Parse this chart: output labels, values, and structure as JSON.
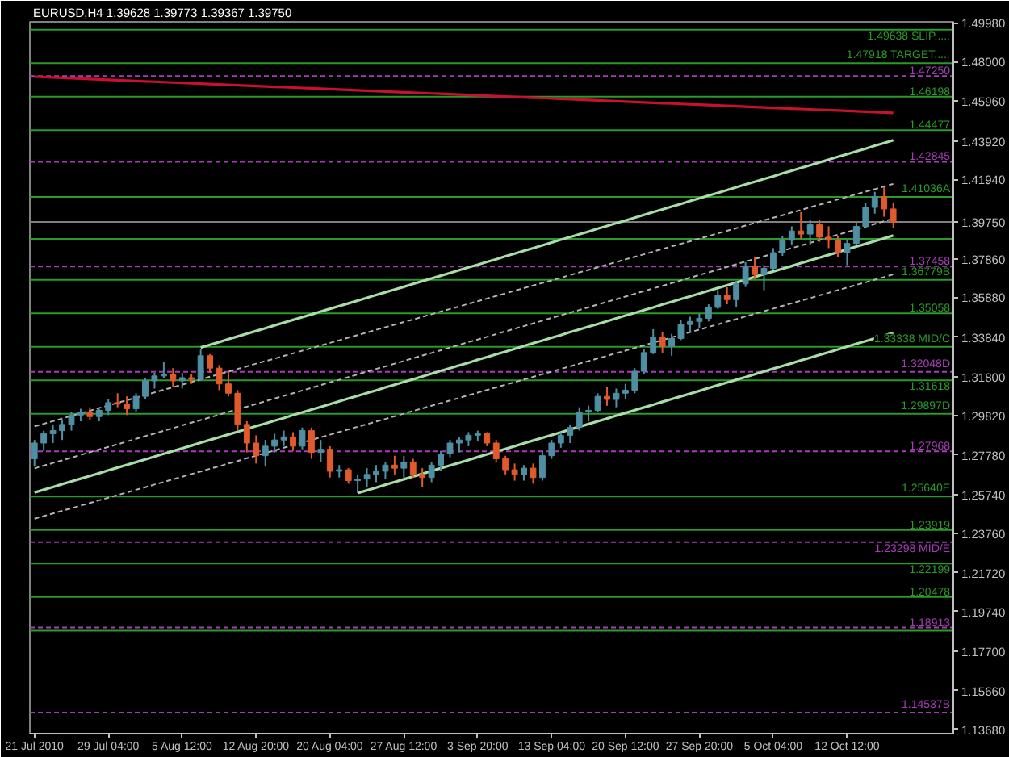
{
  "chart_data": {
    "type": "candlestick",
    "title": "EURUSD,H4  1.39628 1.39773 1.39367 1.39750",
    "categories": [
      "21 Jul 2010",
      null,
      null,
      null,
      null,
      null,
      null,
      null,
      "29 Jul 04:00",
      null,
      null,
      null,
      null,
      null,
      null,
      null,
      "5 Aug 12:00",
      null,
      null,
      null,
      null,
      null,
      null,
      null,
      "12 Aug 20:00",
      null,
      null,
      null,
      null,
      null,
      null,
      null,
      "20 Aug 04:00",
      null,
      null,
      null,
      null,
      null,
      null,
      null,
      "27 Aug 12:00",
      null,
      null,
      null,
      null,
      null,
      null,
      null,
      "3 Sep 20:00",
      null,
      null,
      null,
      null,
      null,
      null,
      null,
      "13 Sep 04:00",
      null,
      null,
      null,
      null,
      null,
      null,
      null,
      "20 Sep 12:00",
      null,
      null,
      null,
      null,
      null,
      null,
      null,
      "27 Sep 20:00",
      null,
      null,
      null,
      null,
      null,
      null,
      null,
      "5 Oct 04:00",
      null,
      null,
      null,
      null,
      null,
      null,
      null,
      "12 Oct 12:00",
      null,
      null,
      null,
      null,
      null
    ],
    "ohlc": [
      [
        1.2758,
        1.2855,
        1.2718,
        1.2839
      ],
      [
        1.2839,
        1.2903,
        1.2799,
        1.2887
      ],
      [
        1.2887,
        1.2935,
        1.2839,
        1.2903
      ],
      [
        1.2903,
        1.2959,
        1.2855,
        1.2935
      ],
      [
        1.2935,
        1.2999,
        1.2903,
        1.2983
      ],
      [
        1.2983,
        1.3015,
        1.2951,
        1.2999
      ],
      [
        1.2999,
        1.3023,
        1.2959,
        1.2975
      ],
      [
        1.2975,
        1.3015,
        1.2951,
        1.3007
      ],
      [
        1.3007,
        1.3063,
        1.2983,
        1.3047
      ],
      [
        1.3047,
        1.3095,
        1.3023,
        1.3039
      ],
      [
        1.3039,
        1.3079,
        1.2983,
        1.3015
      ],
      [
        1.3015,
        1.3095,
        1.2999,
        1.3079
      ],
      [
        1.3079,
        1.3175,
        1.3063,
        1.3159
      ],
      [
        1.3159,
        1.32,
        1.3119,
        1.3184
      ],
      [
        1.3184,
        1.3256,
        1.3175,
        1.3192
      ],
      [
        1.3192,
        1.3224,
        1.3127,
        1.3159
      ],
      [
        1.3159,
        1.32,
        1.3119,
        1.3175
      ],
      [
        1.3175,
        1.3192,
        1.3143,
        1.3167
      ],
      [
        1.3167,
        1.332,
        1.3159,
        1.3288
      ],
      [
        1.3288,
        1.3296,
        1.32,
        1.3224
      ],
      [
        1.3224,
        1.324,
        1.3111,
        1.3143
      ],
      [
        1.3143,
        1.3208,
        1.3079,
        1.3095
      ],
      [
        1.3095,
        1.3111,
        1.2903,
        1.2935
      ],
      [
        1.2935,
        1.2951,
        1.2791,
        1.2839
      ],
      [
        1.2839,
        1.2879,
        1.2734,
        1.2774
      ],
      [
        1.2774,
        1.2855,
        1.2718,
        1.2823
      ],
      [
        1.2823,
        1.2887,
        1.2791,
        1.2855
      ],
      [
        1.2855,
        1.2903,
        1.2823,
        1.2871
      ],
      [
        1.2871,
        1.2895,
        1.2799,
        1.2823
      ],
      [
        1.2823,
        1.2919,
        1.2807,
        1.2903
      ],
      [
        1.2903,
        1.2919,
        1.2758,
        1.2791
      ],
      [
        1.2791,
        1.2855,
        1.2742,
        1.2807
      ],
      [
        1.2807,
        1.2823,
        1.2662,
        1.2694
      ],
      [
        1.2694,
        1.2726,
        1.2662,
        1.2702
      ],
      [
        1.2702,
        1.271,
        1.263,
        1.2646
      ],
      [
        1.2646,
        1.2678,
        1.2582,
        1.2654
      ],
      [
        1.2654,
        1.271,
        1.2614,
        1.2678
      ],
      [
        1.2678,
        1.2726,
        1.2638,
        1.2694
      ],
      [
        1.2694,
        1.2742,
        1.2654,
        1.2726
      ],
      [
        1.2726,
        1.2774,
        1.2678,
        1.271
      ],
      [
        1.271,
        1.2774,
        1.2662,
        1.2742
      ],
      [
        1.2742,
        1.2758,
        1.2662,
        1.2678
      ],
      [
        1.2678,
        1.271,
        1.2614,
        1.2662
      ],
      [
        1.2662,
        1.2742,
        1.2638,
        1.2726
      ],
      [
        1.2726,
        1.2799,
        1.2694,
        1.2783
      ],
      [
        1.2783,
        1.2855,
        1.2766,
        1.2839
      ],
      [
        1.2839,
        1.2871,
        1.2791,
        1.2855
      ],
      [
        1.2855,
        1.2895,
        1.2823,
        1.2879
      ],
      [
        1.2879,
        1.2903,
        1.2847,
        1.2887
      ],
      [
        1.2887,
        1.2895,
        1.2823,
        1.2839
      ],
      [
        1.2839,
        1.2855,
        1.2742,
        1.2758
      ],
      [
        1.2758,
        1.2774,
        1.2678,
        1.2702
      ],
      [
        1.2702,
        1.2734,
        1.2646,
        1.2678
      ],
      [
        1.2678,
        1.2726,
        1.2646,
        1.271
      ],
      [
        1.271,
        1.2734,
        1.263,
        1.2662
      ],
      [
        1.2662,
        1.2799,
        1.2646,
        1.2774
      ],
      [
        1.2774,
        1.2855,
        1.2758,
        1.2839
      ],
      [
        1.2839,
        1.2895,
        1.2815,
        1.2879
      ],
      [
        1.2879,
        1.2935,
        1.2839,
        1.2919
      ],
      [
        1.2919,
        1.3023,
        1.2903,
        1.2999
      ],
      [
        1.2999,
        1.3031,
        1.2951,
        1.3007
      ],
      [
        1.3007,
        1.3095,
        1.2999,
        1.3079
      ],
      [
        1.3079,
        1.3127,
        1.3031,
        1.3063
      ],
      [
        1.3063,
        1.3119,
        1.3023,
        1.3095
      ],
      [
        1.3095,
        1.3143,
        1.3063,
        1.3111
      ],
      [
        1.3111,
        1.3224,
        1.3095,
        1.3208
      ],
      [
        1.3208,
        1.332,
        1.3192,
        1.3304
      ],
      [
        1.3304,
        1.3424,
        1.3296,
        1.3384
      ],
      [
        1.3384,
        1.3408,
        1.3304,
        1.3336
      ],
      [
        1.3336,
        1.34,
        1.3288,
        1.3376
      ],
      [
        1.3376,
        1.3472,
        1.3368,
        1.3448
      ],
      [
        1.3448,
        1.3488,
        1.3408,
        1.3464
      ],
      [
        1.3464,
        1.3504,
        1.3432,
        1.348
      ],
      [
        1.348,
        1.3552,
        1.3464,
        1.3536
      ],
      [
        1.3536,
        1.3625,
        1.3528,
        1.36
      ],
      [
        1.36,
        1.3641,
        1.3552,
        1.3576
      ],
      [
        1.3576,
        1.3673,
        1.3536,
        1.3657
      ],
      [
        1.3657,
        1.3769,
        1.3641,
        1.3745
      ],
      [
        1.3745,
        1.3793,
        1.3681,
        1.3705
      ],
      [
        1.3705,
        1.3753,
        1.3625,
        1.3737
      ],
      [
        1.3737,
        1.3841,
        1.3729,
        1.3817
      ],
      [
        1.3817,
        1.3905,
        1.3801,
        1.3881
      ],
      [
        1.3881,
        1.3953,
        1.3857,
        1.3929
      ],
      [
        1.3929,
        1.4026,
        1.3889,
        1.3913
      ],
      [
        1.3913,
        1.3986,
        1.3857,
        1.3961
      ],
      [
        1.3961,
        1.3986,
        1.3873,
        1.3897
      ],
      [
        1.3897,
        1.3953,
        1.3841,
        1.3881
      ],
      [
        1.3881,
        1.3905,
        1.3793,
        1.3817
      ],
      [
        1.3817,
        1.3881,
        1.3753,
        1.3865
      ],
      [
        1.3865,
        1.3977,
        1.3857,
        1.3953
      ],
      [
        1.3953,
        1.4074,
        1.3945,
        1.405
      ],
      [
        1.405,
        1.413,
        1.4018,
        1.4106
      ],
      [
        1.4106,
        1.4154,
        1.4002,
        1.4042
      ],
      [
        1.4042,
        1.4074,
        1.3945,
        1.3975
      ]
    ],
    "colors": [
      "#4f8fa3",
      "#4f8fa3",
      "#4f8fa3",
      "#4f8fa3",
      "#4f8fa3",
      "#4f8fa3",
      "#e05a2b",
      "#4f8fa3",
      "#4f8fa3",
      "#e05a2b",
      "#e05a2b",
      "#4f8fa3",
      "#4f8fa3",
      "#4f8fa3",
      "#4f8fa3",
      "#e05a2b",
      "#4f8fa3",
      "#e05a2b",
      "#4f8fa3",
      "#e05a2b",
      "#e05a2b",
      "#e05a2b",
      "#e05a2b",
      "#e05a2b",
      "#e05a2b",
      "#4f8fa3",
      "#4f8fa3",
      "#4f8fa3",
      "#e05a2b",
      "#4f8fa3",
      "#e05a2b",
      "#4f8fa3",
      "#e05a2b",
      "#4f8fa3",
      "#e05a2b",
      "#4f8fa3",
      "#4f8fa3",
      "#4f8fa3",
      "#4f8fa3",
      "#e05a2b",
      "#4f8fa3",
      "#e05a2b",
      "#e05a2b",
      "#4f8fa3",
      "#4f8fa3",
      "#4f8fa3",
      "#4f8fa3",
      "#4f8fa3",
      "#4f8fa3",
      "#e05a2b",
      "#e05a2b",
      "#e05a2b",
      "#e05a2b",
      "#4f8fa3",
      "#e05a2b",
      "#4f8fa3",
      "#4f8fa3",
      "#4f8fa3",
      "#4f8fa3",
      "#4f8fa3",
      "#4f8fa3",
      "#4f8fa3",
      "#e05a2b",
      "#4f8fa3",
      "#4f8fa3",
      "#4f8fa3",
      "#4f8fa3",
      "#4f8fa3",
      "#e05a2b",
      "#4f8fa3",
      "#4f8fa3",
      "#4f8fa3",
      "#4f8fa3",
      "#4f8fa3",
      "#4f8fa3",
      "#e05a2b",
      "#4f8fa3",
      "#4f8fa3",
      "#e05a2b",
      "#4f8fa3",
      "#4f8fa3",
      "#4f8fa3",
      "#4f8fa3",
      "#e05a2b",
      "#4f8fa3",
      "#e05a2b",
      "#e05a2b",
      "#e05a2b",
      "#4f8fa3",
      "#4f8fa3",
      "#4f8fa3",
      "#4f8fa3",
      "#e05a2b",
      "#e05a2b"
    ],
    "ylim": [
      1.1346,
      1.5004
    ],
    "yticks": [
      {
        "value": 1.4998,
        "label": "1.49980"
      },
      {
        "value": 1.48,
        "label": "1.48000"
      },
      {
        "value": 1.4596,
        "label": "1.45960"
      },
      {
        "value": 1.4392,
        "label": "1.43920"
      },
      {
        "value": 1.4194,
        "label": "1.41940"
      },
      {
        "value": 1.3975,
        "label": "1.39750"
      },
      {
        "value": 1.3786,
        "label": "1.37860"
      },
      {
        "value": 1.3588,
        "label": "1.35880"
      },
      {
        "value": 1.3384,
        "label": "1.33840"
      },
      {
        "value": 1.318,
        "label": "1.31800"
      },
      {
        "value": 1.2982,
        "label": "1.29820"
      },
      {
        "value": 1.2778,
        "label": "1.27780"
      },
      {
        "value": 1.2574,
        "label": "1.25740"
      },
      {
        "value": 1.2376,
        "label": "1.23760"
      },
      {
        "value": 1.2172,
        "label": "1.21720"
      },
      {
        "value": 1.1974,
        "label": "1.19740"
      },
      {
        "value": 1.177,
        "label": "1.17700"
      },
      {
        "value": 1.1566,
        "label": "1.15660"
      },
      {
        "value": 1.1368,
        "label": "1.13680"
      }
    ],
    "series": [
      {
        "type": "line",
        "color": "#c81030",
        "line_style": "solid",
        "values": [
          1.4722,
          1.472,
          1.4718,
          1.4716,
          1.4714,
          1.4712,
          1.471,
          1.4708,
          1.4706,
          1.4704,
          1.4702,
          1.47,
          1.4698,
          1.4696,
          1.4694,
          1.4692,
          1.469,
          1.4688,
          1.4686,
          1.4684,
          1.4682,
          1.468,
          1.4678,
          1.4676,
          1.4674,
          1.4672,
          1.467,
          1.4668,
          1.4666,
          1.4664,
          1.4662,
          1.466,
          1.4658,
          1.4656,
          1.4654,
          1.4652,
          1.465,
          1.4648,
          1.4646,
          1.4644,
          1.4642,
          1.464,
          1.4638,
          1.4636,
          1.4634,
          1.4632,
          1.463,
          1.4628,
          1.4626,
          1.4624,
          1.4622,
          1.462,
          1.4618,
          1.4616,
          1.4614,
          1.4612,
          1.461,
          1.4608,
          1.4606,
          1.4604,
          1.4602,
          1.46,
          1.4598,
          1.4596,
          1.4594,
          1.4592,
          1.459,
          1.4588,
          1.4586,
          1.4584,
          1.4582,
          1.458,
          1.4578,
          1.4576,
          1.4574,
          1.4572,
          1.457,
          1.4568,
          1.4566,
          1.4564,
          1.4562,
          1.456,
          1.4558,
          1.4556,
          1.4554,
          1.4552,
          1.455,
          1.4548,
          1.4546,
          1.4544,
          1.4542,
          1.454,
          1.4538,
          1.4536
        ]
      },
      {
        "type": "line",
        "color": "#a8dca8",
        "line_style": "solid",
        "values": [
          null,
          null,
          null,
          null,
          null,
          null,
          null,
          null,
          null,
          null,
          null,
          null,
          null,
          null,
          null,
          null,
          null,
          null,
          1.333,
          1.3344,
          1.3358,
          1.3373,
          1.3387,
          1.3401,
          1.3415,
          1.3429,
          1.3444,
          1.3458,
          1.3472,
          1.3486,
          1.35,
          1.3515,
          1.3529,
          1.3543,
          1.3557,
          1.3571,
          1.3586,
          1.36,
          1.3614,
          1.3628,
          1.3642,
          1.3657,
          1.3671,
          1.3685,
          1.3699,
          1.3713,
          1.3728,
          1.3742,
          1.3756,
          1.377,
          1.3784,
          1.3799,
          1.3813,
          1.3827,
          1.3841,
          1.3855,
          1.387,
          1.3884,
          1.3898,
          1.3912,
          1.3926,
          1.3941,
          1.3955,
          1.3969,
          1.3983,
          1.3997,
          1.4012,
          1.4026,
          1.404,
          1.4054,
          1.4068,
          1.4083,
          1.4097,
          1.4111,
          1.4125,
          1.4139,
          1.4154,
          1.4168,
          1.4182,
          1.4196,
          1.421,
          1.4225,
          1.4239,
          1.4253,
          1.4267,
          1.4281,
          1.4296,
          1.431,
          1.4324,
          1.4338,
          1.4352,
          1.4367,
          1.4381,
          1.4395
        ]
      },
      {
        "type": "line",
        "color": "#a8dca8",
        "line_style": "solid",
        "values": [
          1.2585,
          1.2599,
          1.2613,
          1.2628,
          1.2642,
          1.2656,
          1.267,
          1.2684,
          1.2699,
          1.2713,
          1.2727,
          1.2741,
          1.2755,
          1.277,
          1.2784,
          1.2798,
          1.2812,
          1.2826,
          1.2841,
          1.2855,
          1.2869,
          1.2883,
          1.2897,
          1.2912,
          1.2926,
          1.294,
          1.2954,
          1.2968,
          1.2983,
          1.2997,
          1.3011,
          1.3025,
          1.3039,
          1.3054,
          1.3068,
          1.3082,
          1.3096,
          1.311,
          1.3125,
          1.3139,
          1.3153,
          1.3167,
          1.3181,
          1.3196,
          1.321,
          1.3224,
          1.3238,
          1.3252,
          1.3267,
          1.3281,
          1.3295,
          1.3309,
          1.3323,
          1.3338,
          1.3352,
          1.3366,
          1.338,
          1.3394,
          1.3409,
          1.3423,
          1.3437,
          1.3451,
          1.3465,
          1.348,
          1.3494,
          1.3508,
          1.3522,
          1.3536,
          1.3551,
          1.3565,
          1.3579,
          1.3593,
          1.3607,
          1.3622,
          1.3636,
          1.365,
          1.3664,
          1.3678,
          1.3693,
          1.3707,
          1.3721,
          1.3735,
          1.3749,
          1.3764,
          1.3778,
          1.3792,
          1.3806,
          1.382,
          1.3835,
          1.3849,
          1.3863,
          1.3877,
          1.3891,
          1.3906
        ]
      },
      {
        "type": "line",
        "color": "#a8dca8",
        "line_style": "solid",
        "values": [
          null,
          null,
          null,
          null,
          null,
          null,
          null,
          null,
          null,
          null,
          null,
          null,
          null,
          null,
          null,
          null,
          null,
          null,
          null,
          null,
          null,
          null,
          null,
          null,
          null,
          null,
          null,
          null,
          null,
          null,
          null,
          null,
          null,
          null,
          null,
          1.2582,
          1.2596,
          1.261,
          1.2625,
          1.2639,
          1.2653,
          1.2667,
          1.2681,
          1.2696,
          1.271,
          1.2724,
          1.2738,
          1.2752,
          1.2767,
          1.2781,
          1.2795,
          1.2809,
          1.2823,
          1.2838,
          1.2852,
          1.2866,
          1.288,
          1.2894,
          1.2909,
          1.2923,
          1.2937,
          1.2951,
          1.2965,
          1.298,
          1.2994,
          1.3008,
          1.3022,
          1.3036,
          1.3051,
          1.3065,
          1.3079,
          1.3093,
          1.3107,
          1.3122,
          1.3136,
          1.315,
          1.3164,
          1.3178,
          1.3193,
          1.3207,
          1.3221,
          1.3235,
          1.3249,
          1.3264,
          1.3278,
          1.3292,
          1.3306,
          1.332,
          1.3335,
          1.3349,
          1.3363,
          1.3377,
          1.3391,
          1.3406
        ]
      },
      {
        "type": "line",
        "color": "#b4b4b4",
        "line_style": "dashed",
        "values": [
          1.2925,
          1.2938,
          1.2952,
          1.2965,
          1.2979,
          1.2992,
          1.3005,
          1.3019,
          1.3032,
          1.3046,
          1.3059,
          1.3072,
          1.3086,
          1.3099,
          1.3113,
          1.3126,
          1.3139,
          1.3153,
          1.3166,
          1.318,
          1.3193,
          1.3206,
          1.322,
          1.3233,
          1.3247,
          1.326,
          1.3273,
          1.3287,
          1.33,
          1.3314,
          1.3327,
          1.334,
          1.3354,
          1.3367,
          1.3381,
          1.3394,
          1.3407,
          1.3421,
          1.3434,
          1.3448,
          1.3461,
          1.3474,
          1.3488,
          1.3501,
          1.3515,
          1.3528,
          1.3541,
          1.3555,
          1.3568,
          1.3582,
          1.3595,
          1.3608,
          1.3622,
          1.3635,
          1.3649,
          1.3662,
          1.3675,
          1.3689,
          1.3702,
          1.3716,
          1.3729,
          1.3742,
          1.3756,
          1.3769,
          1.3783,
          1.3796,
          1.3809,
          1.3823,
          1.3836,
          1.385,
          1.3863,
          1.3876,
          1.389,
          1.3903,
          1.3917,
          1.393,
          1.3943,
          1.3957,
          1.397,
          1.3984,
          1.3997,
          1.401,
          1.4024,
          1.4037,
          1.4051,
          1.4064,
          1.4077,
          1.4091,
          1.4104,
          1.4118,
          1.4131,
          1.4144,
          1.4158,
          1.4171
        ]
      },
      {
        "type": "line",
        "color": "#b4b4b4",
        "line_style": "dashed",
        "values": [
          1.2709,
          1.2723,
          1.2737,
          1.275,
          1.2764,
          1.2778,
          1.2792,
          1.2806,
          1.2819,
          1.2833,
          1.2847,
          1.2861,
          1.2875,
          1.2888,
          1.2902,
          1.2916,
          1.293,
          1.2944,
          1.2957,
          1.2971,
          1.2985,
          1.2999,
          1.3013,
          1.3026,
          1.304,
          1.3054,
          1.3068,
          1.3082,
          1.3095,
          1.3109,
          1.3123,
          1.3137,
          1.3151,
          1.3164,
          1.3178,
          1.3192,
          1.3206,
          1.322,
          1.3233,
          1.3247,
          1.3261,
          1.3275,
          1.3289,
          1.3302,
          1.3316,
          1.333,
          1.3344,
          1.3358,
          1.3371,
          1.3385,
          1.3399,
          1.3413,
          1.3427,
          1.344,
          1.3454,
          1.3468,
          1.3482,
          1.3496,
          1.3509,
          1.3523,
          1.3537,
          1.3551,
          1.3565,
          1.3578,
          1.3592,
          1.3606,
          1.362,
          1.3634,
          1.3647,
          1.3661,
          1.3675,
          1.3689,
          1.3703,
          1.3716,
          1.373,
          1.3744,
          1.3758,
          1.3772,
          1.3785,
          1.3799,
          1.3813,
          1.3827,
          1.3841,
          1.3854,
          1.3868,
          1.3882,
          1.3896,
          1.391,
          1.3923,
          1.3937,
          1.3951,
          1.3965,
          1.3979,
          1.3992
        ]
      },
      {
        "type": "line",
        "color": "#b4b4b4",
        "line_style": "dashed",
        "values": [
          1.245,
          1.2464,
          1.2477,
          1.2491,
          1.2504,
          1.2518,
          1.2531,
          1.2545,
          1.2558,
          1.2572,
          1.2585,
          1.2599,
          1.2612,
          1.2626,
          1.2639,
          1.2653,
          1.2666,
          1.268,
          1.2693,
          1.2707,
          1.272,
          1.2734,
          1.2747,
          1.2761,
          1.2774,
          1.2788,
          1.2801,
          1.2815,
          1.2828,
          1.2842,
          1.2855,
          1.2869,
          1.2882,
          1.2896,
          1.2909,
          1.2923,
          1.2936,
          1.295,
          1.2963,
          1.2977,
          1.299,
          1.3004,
          1.3017,
          1.3031,
          1.3044,
          1.3058,
          1.3071,
          1.3085,
          1.3098,
          1.3112,
          1.3125,
          1.3139,
          1.3152,
          1.3166,
          1.3179,
          1.3193,
          1.3206,
          1.322,
          1.3233,
          1.3247,
          1.326,
          1.3274,
          1.3287,
          1.3301,
          1.3314,
          1.3328,
          1.3341,
          1.3355,
          1.3368,
          1.3382,
          1.3395,
          1.3409,
          1.3422,
          1.3436,
          1.3449,
          1.3463,
          1.3476,
          1.349,
          1.3503,
          1.3517,
          1.353,
          1.3544,
          1.3557,
          1.3571,
          1.3584,
          1.3598,
          1.3611,
          1.3625,
          1.3638,
          1.3652,
          1.3665,
          1.3679,
          1.3692,
          1.3706
        ]
      }
    ],
    "ref_lines": [
      {
        "axis": "y",
        "value": 1.49638,
        "label": "1.49638 SLIP.....",
        "color": "#2a9a2a"
      },
      {
        "axis": "y",
        "value": 1.47918,
        "label": "1.47918 TARGET.....",
        "color": "#2a9a2a"
      },
      {
        "axis": "y",
        "value": 1.4725,
        "label": "1.47250",
        "color": "#a83cb8",
        "line_style": "dashed"
      },
      {
        "axis": "y",
        "value": 1.46198,
        "label": "1.46198",
        "color": "#2a9a2a"
      },
      {
        "axis": "y",
        "value": 1.44477,
        "label": "1.44477",
        "color": "#2a9a2a"
      },
      {
        "axis": "y",
        "value": 1.42845,
        "label": "1.42845",
        "color": "#a83cb8",
        "line_style": "dashed"
      },
      {
        "axis": "y",
        "value": 1.41036,
        "label": "1.41036A",
        "color": "#2a9a2a"
      },
      {
        "axis": "y",
        "value": 1.3975,
        "color": "#808080"
      },
      {
        "axis": "y",
        "value": 1.3888,
        "color": "#2a9a2a"
      },
      {
        "axis": "y",
        "value": 1.37458,
        "label": "1.37458",
        "color": "#a83cb8",
        "line_style": "dashed"
      },
      {
        "axis": "y",
        "value": 1.36779,
        "label": "1.36779B",
        "color": "#2a9a2a"
      },
      {
        "axis": "y",
        "value": 1.35058,
        "label": "1.35058",
        "color": "#2a9a2a"
      },
      {
        "axis": "y",
        "value": 1.33338,
        "label": "1.33338 MID/C",
        "color": "#2a9a2a"
      },
      {
        "axis": "y",
        "value": 1.32048,
        "label": "1.32048D",
        "color": "#a83cb8",
        "line_style": "dashed"
      },
      {
        "axis": "y",
        "value": 1.31618,
        "label": "1.31618",
        "color": "#2a9a2a"
      },
      {
        "axis": "y",
        "value": 1.29897,
        "label": "1.29897D",
        "color": "#2a9a2a"
      },
      {
        "axis": "y",
        "value": 1.27968,
        "label": "1.27968",
        "color": "#a83cb8",
        "line_style": "dashed"
      },
      {
        "axis": "y",
        "value": 1.2564,
        "label": "1.25640E",
        "color": "#2a9a2a"
      },
      {
        "axis": "y",
        "value": 1.23919,
        "label": "1.23919",
        "color": "#2a9a2a"
      },
      {
        "axis": "y",
        "value": 1.23298,
        "label": "1.23298 MID/E",
        "color": "#a83cb8",
        "line_style": "dashed"
      },
      {
        "axis": "y",
        "value": 1.22199,
        "label": "1.22199",
        "color": "#2a9a2a"
      },
      {
        "axis": "y",
        "value": 1.20478,
        "label": "1.20478",
        "color": "#2a9a2a"
      },
      {
        "axis": "y",
        "value": 1.18913,
        "label": "1.18913",
        "color": "#a83cb8",
        "line_style": "dashed"
      },
      {
        "axis": "y",
        "value": 1.1875,
        "color": "#2a9a2a"
      },
      {
        "axis": "y",
        "value": 1.14537,
        "label": "1.14537B",
        "color": "#a83cb8",
        "line_style": "dashed"
      }
    ]
  }
}
